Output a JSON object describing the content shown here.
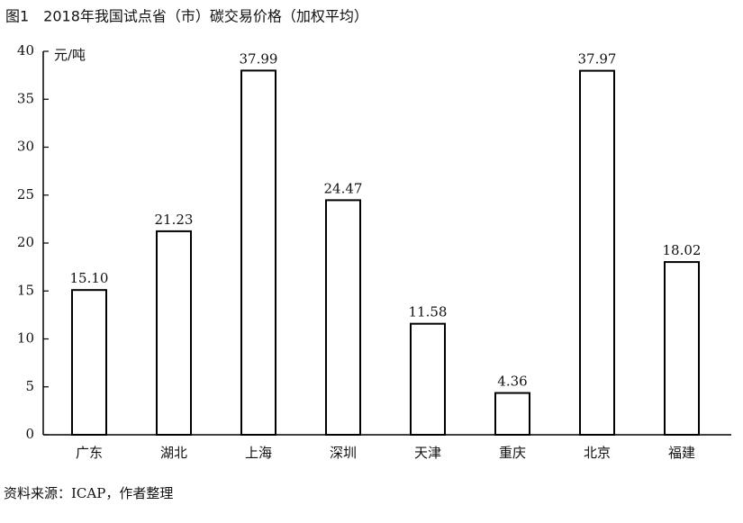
{
  "chart_data": {
    "type": "bar",
    "title": "图1　2018年我国试点省（市）碳交易价格（加权平均）",
    "y_label": "元/吨",
    "categories": [
      "广东",
      "湖北",
      "上海",
      "深圳",
      "天津",
      "重庆",
      "北京",
      "福建"
    ],
    "values": [
      15.1,
      21.23,
      37.99,
      24.47,
      11.58,
      4.36,
      37.97,
      18.02
    ],
    "value_labels": [
      "15.10",
      "21.23",
      "37.99",
      "24.47",
      "11.58",
      "4.36",
      "37.97",
      "18.02"
    ],
    "color": "#ffffff",
    "edge_color": "#000000",
    "ylim": [
      0,
      40
    ],
    "yticks": [
      0,
      5,
      10,
      15,
      20,
      25,
      30,
      35,
      40
    ],
    "grid": false,
    "source": "资料来源：ICAP，作者整理"
  }
}
